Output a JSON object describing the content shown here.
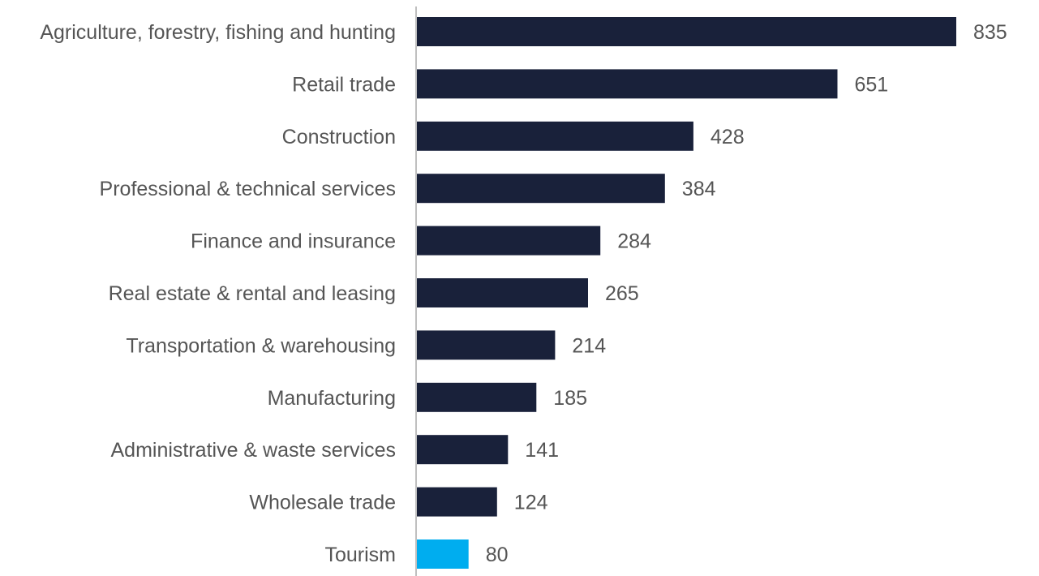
{
  "chart_data": {
    "type": "bar",
    "orientation": "horizontal",
    "categories": [
      "Agriculture, forestry, fishing and hunting",
      "Retail trade",
      "Construction",
      "Professional & technical services",
      "Finance and insurance",
      "Real estate & rental and leasing",
      "Transportation & warehousing",
      "Manufacturing",
      "Administrative & waste services",
      "Wholesale trade",
      "Tourism"
    ],
    "values": [
      835,
      651,
      428,
      384,
      284,
      265,
      214,
      185,
      141,
      124,
      80
    ],
    "value_labels": [
      "835",
      "651",
      "428",
      "384",
      "284",
      "265",
      "214",
      "185",
      "141",
      "124",
      "80"
    ],
    "highlight_index": 10,
    "title": "",
    "xlabel": "",
    "ylabel": "",
    "xlim": [
      0,
      835
    ],
    "grid": false,
    "legend": "none",
    "colors": {
      "bar": "#19213a",
      "highlight": "#00adef",
      "axis": "#bfbfbf",
      "text": "#555555"
    }
  }
}
